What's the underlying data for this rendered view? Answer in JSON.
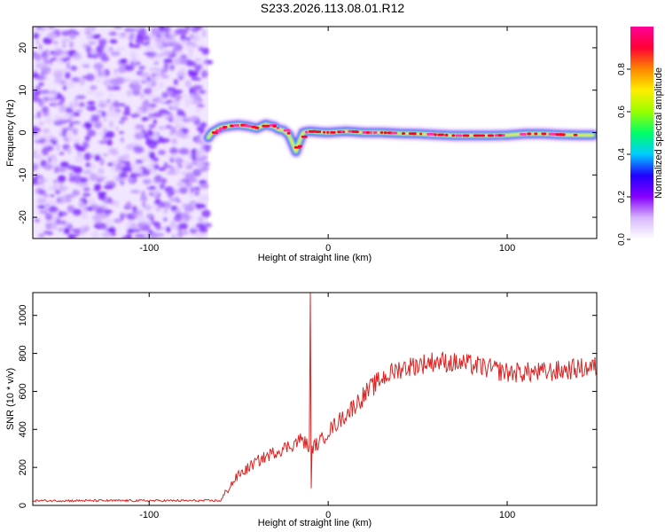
{
  "title": "S233.2026.113.08.01.R12",
  "chart_data": [
    {
      "type": "heatmap",
      "name": "spectrogram",
      "xlabel": "Height of straight line (km)",
      "ylabel": "Frequency (Hz)",
      "xlim": [
        -165,
        150
      ],
      "ylim": [
        -25,
        25
      ],
      "xticks": [
        -100,
        0,
        100
      ],
      "yticks": [
        -20,
        -10,
        0,
        10,
        20
      ],
      "noise_region_x": [
        -165,
        -67
      ],
      "signal_track": {
        "x": [
          -67,
          -65,
          -60,
          -55,
          -50,
          -45,
          -40,
          -35,
          -30,
          -28,
          -25,
          -22,
          -20,
          -18,
          -16,
          -14,
          -12,
          -10,
          -5,
          0,
          10,
          20,
          30,
          40,
          50,
          60,
          70,
          80,
          90,
          100,
          110,
          120,
          130,
          140,
          148
        ],
        "freq": [
          -1.2,
          0,
          1.2,
          1.6,
          1.8,
          1.5,
          1.0,
          1.9,
          1.4,
          0.8,
          0.5,
          -0.5,
          -2.5,
          -4.5,
          -2.0,
          0,
          0.2,
          0.3,
          0.1,
          0,
          0.3,
          0,
          0,
          -0.2,
          -0.3,
          -0.5,
          -0.7,
          -0.7,
          -0.7,
          -0.6,
          -0.3,
          -0.3,
          -0.5,
          -0.6,
          -0.6
        ]
      },
      "colorbar": {
        "label": "Normalized spectral amplitude",
        "range": [
          0,
          1
        ],
        "ticks": [
          0.0,
          0.2,
          0.4,
          0.6,
          0.8
        ],
        "tick_labels": [
          "0.0",
          "0.2",
          "0.4",
          "0.6",
          "0.8"
        ],
        "colors": [
          "#ffffff",
          "#d8b8ff",
          "#8800ff",
          "#2200ff",
          "#00ccff",
          "#00ff66",
          "#99ff00",
          "#ffee00",
          "#ff8800",
          "#ff0033",
          "#ff0099"
        ]
      }
    },
    {
      "type": "line",
      "name": "snr",
      "xlabel": "Height of straight line (km)",
      "ylabel": "SNR (10 * v/v)",
      "xlim": [
        -165,
        150
      ],
      "ylim": [
        0,
        1120
      ],
      "xticks": [
        -100,
        0,
        100
      ],
      "yticks": [
        0,
        200,
        400,
        600,
        800,
        1000
      ],
      "color": "#dd2222",
      "spike": {
        "x": -10,
        "peak": 1120,
        "dip": 90
      },
      "control_points": {
        "x": [
          -165,
          -60,
          -55,
          -50,
          -40,
          -30,
          -20,
          -15,
          -10,
          -5,
          0,
          10,
          20,
          30,
          40,
          50,
          60,
          80,
          100,
          120,
          140,
          150
        ],
        "y": [
          25,
          25,
          100,
          160,
          230,
          280,
          320,
          350,
          300,
          330,
          390,
          480,
          580,
          670,
          720,
          740,
          760,
          740,
          700,
          700,
          720,
          730
        ]
      },
      "noise_amplitude": 110
    }
  ]
}
